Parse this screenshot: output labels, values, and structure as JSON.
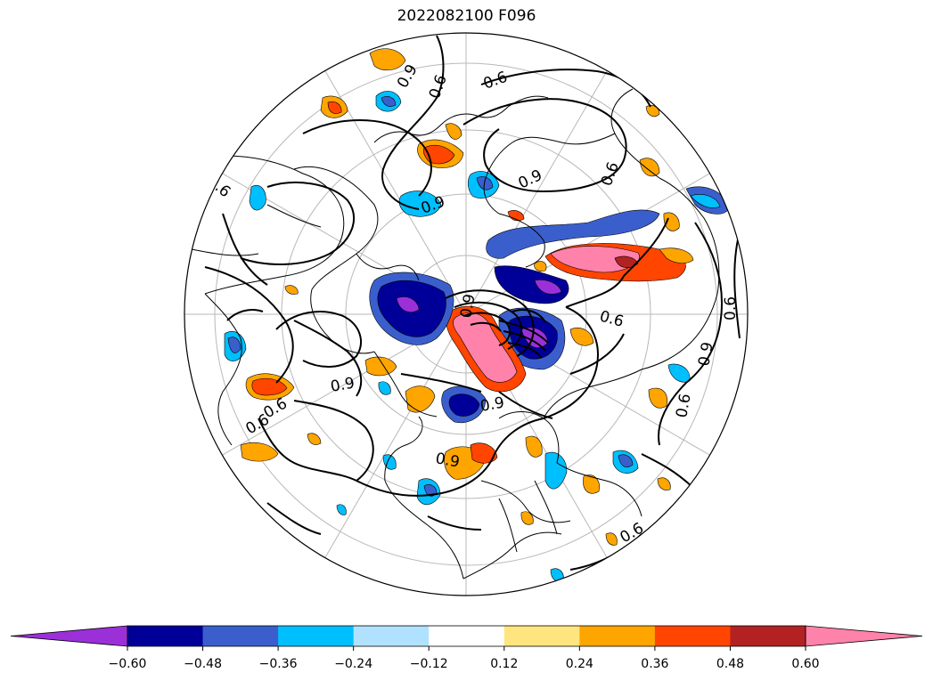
{
  "title": "2022082100 F096",
  "map": {
    "projection": "north-polar-stereographic",
    "coastline_color": "#000000",
    "graticule_color": "#b0b0b0",
    "contour_label": "0.9",
    "contour_label_alt": "0.6"
  },
  "colorbar": {
    "levels": [
      -0.6,
      -0.48,
      -0.36,
      -0.24,
      -0.12,
      0.12,
      0.24,
      0.36,
      0.48,
      0.6
    ],
    "tick_labels": [
      "−0.60",
      "−0.48",
      "−0.36",
      "−0.24",
      "−0.12",
      "0.12",
      "0.24",
      "0.36",
      "0.48",
      "0.60"
    ],
    "colors": [
      "#9b30d9",
      "#000099",
      "#3a5fcd",
      "#00bfff",
      "#b0e2ff",
      "#ffffff",
      "#ffe57f",
      "#ffa500",
      "#ff4500",
      "#b22222",
      "#ff82ab"
    ],
    "extend": "both"
  }
}
